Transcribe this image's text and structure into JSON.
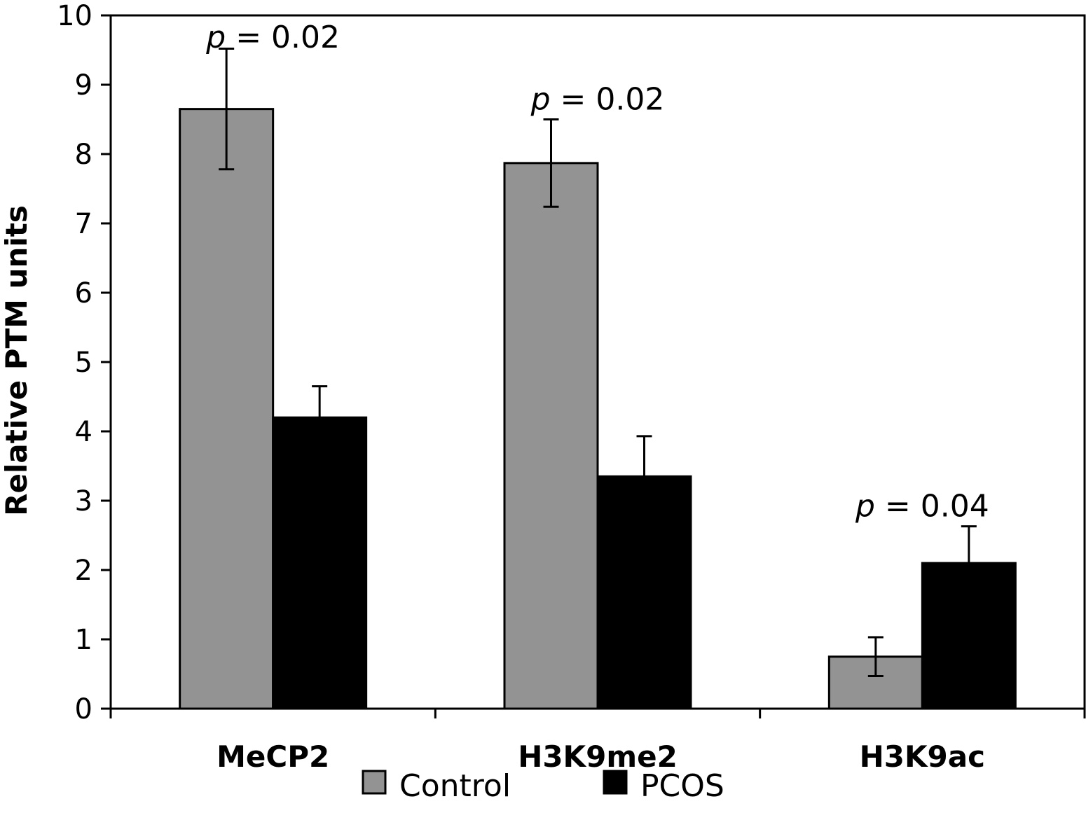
{
  "chart_data": {
    "type": "bar",
    "title": "",
    "xlabel": "",
    "ylabel": "Relative PTM units",
    "ylim": [
      0,
      10
    ],
    "yticks": [
      0,
      1,
      2,
      3,
      4,
      5,
      6,
      7,
      8,
      9,
      10
    ],
    "categories": [
      "MeCP2",
      "H3K9me2",
      "H3K9ac"
    ],
    "series": [
      {
        "name": "Control",
        "color": "#939393",
        "values": [
          8.65,
          7.87,
          0.75
        ],
        "error": [
          0.87,
          0.63,
          0.28
        ]
      },
      {
        "name": "PCOS",
        "color": "#000000",
        "values": [
          4.2,
          3.35,
          2.1
        ],
        "error": [
          0.45,
          0.58,
          0.53
        ]
      }
    ],
    "annotations": [
      {
        "category": "MeCP2",
        "label_italic": "p",
        "label_rest": " = 0.02"
      },
      {
        "category": "H3K9me2",
        "label_italic": "p",
        "label_rest": " = 0.02"
      },
      {
        "category": "H3K9ac",
        "label_italic": "p",
        "label_rest": " = 0.04"
      }
    ],
    "legend_position": "bottom",
    "grid": false
  }
}
